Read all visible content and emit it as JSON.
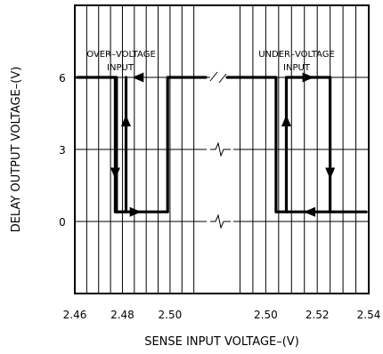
{
  "chart_data": {
    "type": "line",
    "title": "",
    "xlabel": "SENSE INPUT VOLTAGE–(V)",
    "ylabel": "DELAY OUTPUT VOLTAGE–(V)",
    "ylim": [
      -3,
      9
    ],
    "yticks": [
      0,
      3,
      6
    ],
    "ytick_labels": [
      "0",
      "3",
      "6"
    ],
    "grid": true,
    "axis_break": "between 2.50 (left panel) and 2.50 (right panel)",
    "panels": [
      {
        "name": "left",
        "xlim": [
          2.46,
          2.515
        ],
        "xticks": [
          2.46,
          2.48,
          2.5
        ],
        "xtick_labels": [
          "2.46",
          "2.48",
          "2.50"
        ],
        "annotation": [
          "OVER–VOLTAGE",
          "INPUT"
        ]
      },
      {
        "name": "right",
        "xlim": [
          2.485,
          2.54
        ],
        "xticks": [
          2.5,
          2.52,
          2.54
        ],
        "xtick_labels": [
          "2.50",
          "2.52",
          "2.54"
        ],
        "annotation": [
          "UNDER–VOLTAGE",
          "INPUT"
        ]
      }
    ],
    "series": [
      {
        "panel": "left",
        "x": [
          2.461,
          2.477,
          2.477,
          2.4815,
          2.4815
        ],
        "y": [
          6.0,
          6.0,
          0.4,
          0.4,
          6.0
        ]
      },
      {
        "panel": "left",
        "x": [
          2.4775,
          2.4775,
          2.499,
          2.499,
          2.515
        ],
        "y": [
          6.0,
          0.4,
          0.4,
          6.0,
          6.0
        ]
      },
      {
        "panel": "right",
        "x": [
          2.485,
          2.504,
          2.504,
          2.539
        ],
        "y": [
          6.0,
          6.0,
          0.4,
          0.4
        ]
      },
      {
        "panel": "right",
        "x": [
          2.508,
          2.508,
          2.525,
          2.525
        ],
        "y": [
          0.4,
          6.0,
          6.0,
          0.4
        ]
      }
    ],
    "colors": {
      "line": "#000000",
      "grid": "#000000",
      "background": "#ffffff"
    }
  }
}
